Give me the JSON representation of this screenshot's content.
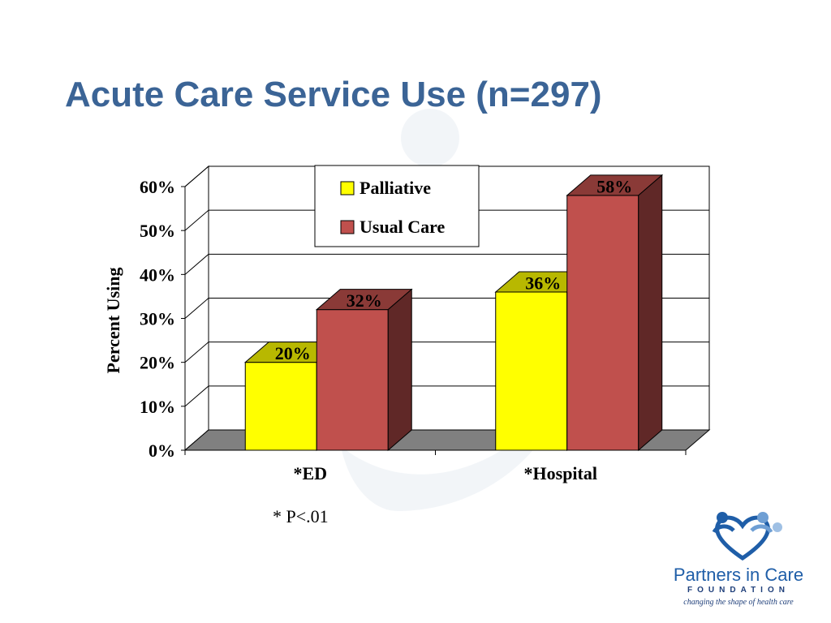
{
  "slide": {
    "title": "Acute Care Service Use (n=297)",
    "footnote": "* P<.01"
  },
  "logo": {
    "name": "Partners in Care",
    "foundation": "FOUNDATION",
    "tagline": "changing the shape of health care"
  },
  "colors": {
    "title": "#3b6496",
    "palliative": "#ffff00",
    "usual_care": "#c0504d",
    "floor": "#808080"
  },
  "chart_data": {
    "type": "bar",
    "title": "",
    "xlabel": "",
    "ylabel": "Percent Using",
    "ylim": [
      0,
      60
    ],
    "yticks": [
      "0%",
      "10%",
      "20%",
      "30%",
      "40%",
      "50%",
      "60%"
    ],
    "categories": [
      "*ED",
      "*Hospital"
    ],
    "series": [
      {
        "name": "Palliative",
        "values": [
          20,
          36
        ],
        "labels": [
          "20%",
          "36%"
        ]
      },
      {
        "name": "Usual Care",
        "values": [
          32,
          58
        ],
        "labels": [
          "32%",
          "58%"
        ]
      }
    ],
    "legend": "top-center",
    "grid": true,
    "style": "3d"
  }
}
